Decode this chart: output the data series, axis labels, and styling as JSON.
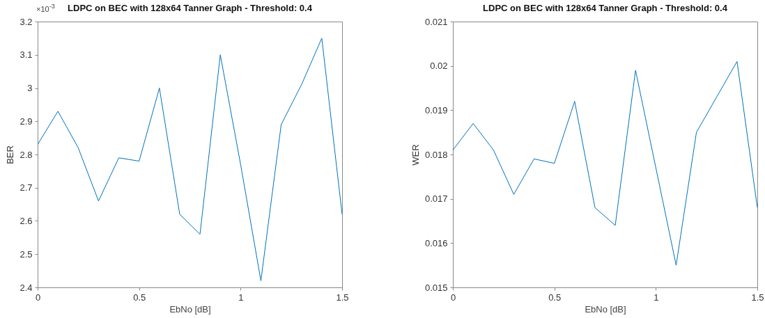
{
  "chart_data": [
    {
      "type": "line",
      "title": "LDPC on BEC with 128x64 Tanner Graph - Threshold: 0.4",
      "xlabel": "EbNo [dB]",
      "ylabel": "BER",
      "annotations": [
        "×10$^{-3}$"
      ],
      "x": [
        0,
        0.1,
        0.2,
        0.3,
        0.4,
        0.5,
        0.6,
        0.7,
        0.8,
        0.9,
        1.0,
        1.1,
        1.2,
        1.3,
        1.4,
        1.5
      ],
      "series": [
        {
          "color": "#0072bd",
          "values": [
            2.83,
            2.93,
            2.82,
            2.66,
            2.79,
            2.78,
            3.0,
            2.62,
            2.56,
            3.1,
            2.77,
            2.42,
            2.89,
            3.01,
            3.15,
            2.62
          ]
        }
      ],
      "xlim": [
        0,
        1.5
      ],
      "xticks": [
        0,
        0.5,
        1,
        1.5
      ],
      "ylim": [
        2.4,
        3.2
      ],
      "yticks": [
        2.4,
        2.5,
        2.6,
        2.7,
        2.8,
        2.9,
        3,
        3.1,
        3.2
      ],
      "grid": false,
      "legend": false
    },
    {
      "type": "line",
      "title": "LDPC on BEC with 128x64 Tanner Graph - Threshold: 0.4",
      "xlabel": "EbNo [dB]",
      "ylabel": "WER",
      "x": [
        0,
        0.1,
        0.2,
        0.3,
        0.4,
        0.5,
        0.6,
        0.7,
        0.8,
        0.9,
        1.0,
        1.1,
        1.2,
        1.3,
        1.4,
        1.5
      ],
      "series": [
        {
          "color": "#0072bd",
          "values": [
            0.0181,
            0.0187,
            0.0181,
            0.0171,
            0.0179,
            0.0178,
            0.0192,
            0.0168,
            0.0164,
            0.0199,
            0.0177,
            0.0155,
            0.0185,
            0.0193,
            0.0201,
            0.0168
          ]
        }
      ],
      "xlim": [
        0,
        1.5
      ],
      "xticks": [
        0,
        0.5,
        1,
        1.5
      ],
      "ylim": [
        0.015,
        0.021
      ],
      "yticks": [
        0.015,
        0.016,
        0.017,
        0.018,
        0.019,
        0.02,
        0.021
      ],
      "grid": false,
      "legend": false
    }
  ]
}
